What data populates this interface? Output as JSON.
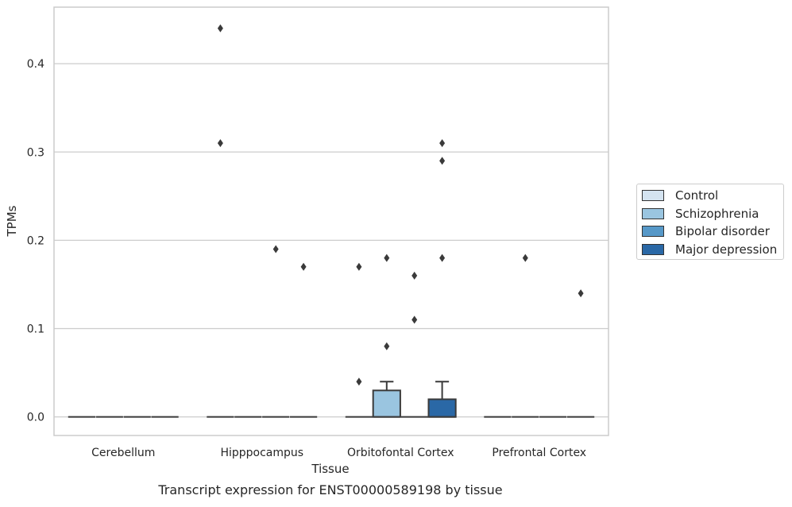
{
  "chart_data": {
    "type": "box",
    "title": "",
    "caption": "Transcript expression for ENST00000589198 by tissue",
    "xlabel": "Tissue",
    "ylabel": "TPMs",
    "ylim": [
      -0.021,
      0.464
    ],
    "yticks": [
      "0.0",
      "0.1",
      "0.2",
      "0.3",
      "0.4"
    ],
    "ytick_values": [
      0,
      0.1,
      0.2,
      0.3,
      0.4
    ],
    "grid": "horizontal",
    "legend_position": "right",
    "categories": [
      "Cerebellum",
      "Hipppocampus",
      "Orbitofontal Cortex",
      "Prefrontal Cortex"
    ],
    "series": [
      {
        "name": "Control",
        "color": "#d4e3f0",
        "boxes": [
          {
            "q1": 0,
            "median": 0,
            "q3": 0,
            "whisker_low": 0,
            "whisker_high": 0,
            "outliers": []
          },
          {
            "q1": 0,
            "median": 0,
            "q3": 0,
            "whisker_low": 0,
            "whisker_high": 0,
            "outliers": [
              0.44,
              0.31
            ]
          },
          {
            "q1": 0,
            "median": 0,
            "q3": 0,
            "whisker_low": 0,
            "whisker_high": 0,
            "outliers": [
              0.17,
              0.04
            ]
          },
          {
            "q1": 0,
            "median": 0,
            "q3": 0,
            "whisker_low": 0,
            "whisker_high": 0,
            "outliers": []
          }
        ]
      },
      {
        "name": "Schizophrenia",
        "color": "#9ac5e0",
        "boxes": [
          {
            "q1": 0,
            "median": 0,
            "q3": 0,
            "whisker_low": 0,
            "whisker_high": 0,
            "outliers": []
          },
          {
            "q1": 0,
            "median": 0,
            "q3": 0,
            "whisker_low": 0,
            "whisker_high": 0,
            "outliers": []
          },
          {
            "q1": 0,
            "median": 0,
            "q3": 0.03,
            "whisker_low": 0,
            "whisker_high": 0.04,
            "outliers": [
              0.18,
              0.08
            ]
          },
          {
            "q1": 0,
            "median": 0,
            "q3": 0,
            "whisker_low": 0,
            "whisker_high": 0,
            "outliers": [
              0.18
            ]
          }
        ]
      },
      {
        "name": "Bipolar disorder",
        "color": "#5698c8",
        "boxes": [
          {
            "q1": 0,
            "median": 0,
            "q3": 0,
            "whisker_low": 0,
            "whisker_high": 0,
            "outliers": []
          },
          {
            "q1": 0,
            "median": 0,
            "q3": 0,
            "whisker_low": 0,
            "whisker_high": 0,
            "outliers": [
              0.19
            ]
          },
          {
            "q1": 0,
            "median": 0,
            "q3": 0,
            "whisker_low": 0,
            "whisker_high": 0,
            "outliers": [
              0.16,
              0.11
            ]
          },
          {
            "q1": 0,
            "median": 0,
            "q3": 0,
            "whisker_low": 0,
            "whisker_high": 0,
            "outliers": []
          }
        ]
      },
      {
        "name": "Major depression",
        "color": "#2a68a6",
        "boxes": [
          {
            "q1": 0,
            "median": 0,
            "q3": 0,
            "whisker_low": 0,
            "whisker_high": 0,
            "outliers": []
          },
          {
            "q1": 0,
            "median": 0,
            "q3": 0,
            "whisker_low": 0,
            "whisker_high": 0,
            "outliers": [
              0.17
            ]
          },
          {
            "q1": 0,
            "median": 0,
            "q3": 0.02,
            "whisker_low": 0,
            "whisker_high": 0.04,
            "outliers": [
              0.31,
              0.29,
              0.18
            ]
          },
          {
            "q1": 0,
            "median": 0,
            "q3": 0,
            "whisker_low": 0,
            "whisker_high": 0,
            "outliers": [
              0.14
            ]
          }
        ]
      }
    ]
  }
}
